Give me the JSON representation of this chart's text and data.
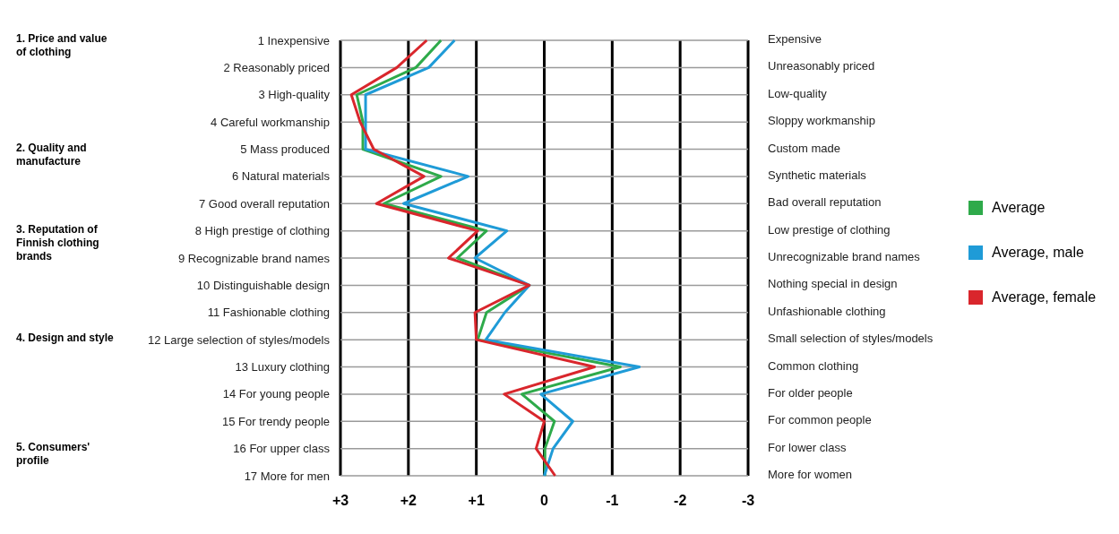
{
  "chart_data": {
    "type": "line",
    "orientation": "horizontal",
    "categories": [
      "1  Inexpensive",
      "2  Reasonably priced",
      "3  High-quality",
      "4  Careful workmanship",
      "5  Mass produced",
      "6  Natural materials",
      "7 Good overall reputation",
      "8  High prestige of clothing",
      "9 Recognizable brand names",
      "10  Distinguishable design",
      "11 Fashionable clothing",
      "12 Large selection of styles/models",
      "13  Luxury clothing",
      "14  For young people",
      "15  For trendy people",
      "16  For upper class",
      "17  More for men"
    ],
    "series": [
      {
        "name": "Average",
        "color": "#2eaa4a",
        "values": [
          1.52,
          1.89,
          2.76,
          2.67,
          2.67,
          1.52,
          2.36,
          0.85,
          1.28,
          0.22,
          0.85,
          0.98,
          -1.12,
          0.33,
          -0.15,
          -0.01,
          -0.01
        ]
      },
      {
        "name": "Average, male",
        "color": "#1f9bd7",
        "values": [
          1.32,
          1.7,
          2.63,
          2.63,
          2.63,
          1.12,
          2.07,
          0.55,
          1.02,
          0.22,
          0.58,
          0.86,
          -1.4,
          0.05,
          -0.42,
          -0.13,
          0
        ]
      },
      {
        "name": "Average, female",
        "color": "#d9262c",
        "values": [
          1.73,
          2.17,
          2.84,
          2.71,
          2.51,
          1.77,
          2.47,
          0.98,
          1.41,
          0.22,
          1.02,
          1,
          -0.74,
          0.59,
          0,
          0.12,
          -0.16
        ]
      }
    ],
    "xlim": [
      3,
      -3
    ],
    "xticks": [
      {
        "value": 3,
        "label": "+3"
      },
      {
        "value": 2,
        "label": "+2"
      },
      {
        "value": 1,
        "label": "+1"
      },
      0,
      -1,
      -2,
      -3
    ],
    "grid": true,
    "legend": "right",
    "marker": "none",
    "line_style": "solid",
    "annotations": [
      "Expensive",
      "Unreasonably priced",
      "Low-quality",
      "Sloppy workmanship",
      "Custom made",
      "Synthetic materials",
      "Bad overall reputation",
      "Low prestige of clothing",
      "Unrecognizable brand names",
      "Nothing special in design",
      "Unfashionable clothing",
      "Small selection of styles/models",
      "Common clothing",
      "For older people",
      "For common people",
      "For lower class",
      "More for women",
      "1. Price and value of clothing",
      "2. Quality and manufacture",
      "3. Reputation of Finnish clothing brands",
      "4. Design and style",
      "5. Consumers' profile"
    ]
  }
}
